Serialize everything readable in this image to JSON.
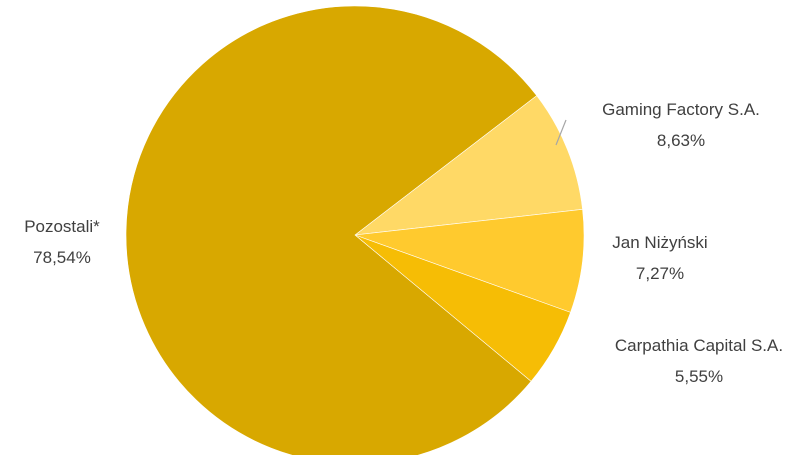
{
  "chart_data": {
    "type": "pie",
    "slices": [
      {
        "label": "Pozostali*",
        "value": 78.54,
        "value_label": "78,54%",
        "color": "#D8A800"
      },
      {
        "label": "Gaming Factory S.A.",
        "value": 8.63,
        "value_label": "8,63%",
        "color": "#FFD966"
      },
      {
        "label": "Jan Niżyński",
        "value": 7.27,
        "value_label": "7,27%",
        "color": "#FFCA2E"
      },
      {
        "label": "Carpathia Capital S.A.",
        "value": 5.55,
        "value_label": "5,55%",
        "color": "#F6BD05"
      }
    ],
    "start_slice": "Gaming Factory S.A.",
    "legend": "none"
  }
}
